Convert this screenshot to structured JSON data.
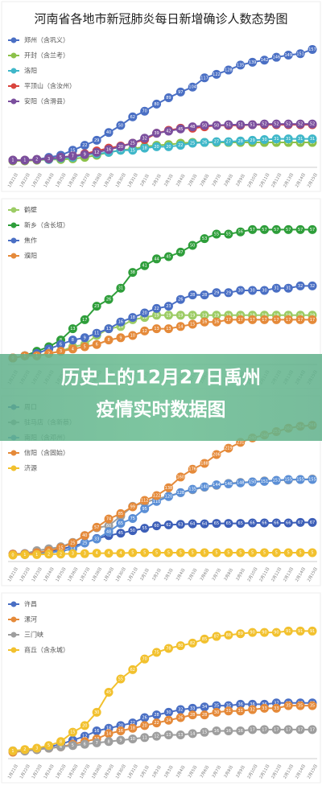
{
  "banner": [
    "历史上的12月27日禹州",
    "疫情实时数据图"
  ],
  "chart_data": [
    {
      "type": "line",
      "title": "河南省各地市新冠肺炎每日新增确诊人数态势图",
      "categories": [
        "1月21日",
        "1月22日",
        "1月23日",
        "1月24日",
        "1月25日",
        "1月26日",
        "1月27日",
        "1月28日",
        "1月29日",
        "1月30日",
        "1月31日",
        "2月1日",
        "2月2日",
        "2月3日",
        "2月4日",
        "2月5日",
        "2月6日",
        "2月7日",
        "2月8日",
        "2月9日",
        "2月10日",
        "2月11日",
        "2月12日",
        "2月13日",
        "2月14日",
        "2月15日"
      ],
      "ylim": [
        0,
        170
      ],
      "series": [
        {
          "name": "郑州（含巩义）",
          "color": "#4a6fc4",
          "values": [
            1,
            1,
            2,
            5,
            8,
            15,
            22,
            29,
            40,
            50,
            62,
            70,
            80,
            89,
            97,
            104,
            117,
            122,
            128,
            135,
            139,
            142,
            146,
            149,
            151,
            157
          ]
        },
        {
          "name": "开封（含兰考）",
          "color": "#8cc14a",
          "values": [
            0,
            0,
            1,
            2,
            2,
            3,
            5,
            8,
            12,
            15,
            17,
            20,
            22,
            23,
            25,
            26,
            26,
            26,
            26,
            26,
            26,
            26,
            26,
            26,
            26,
            26
          ]
        },
        {
          "name": "洛阳",
          "color": "#3fb7c9",
          "values": [
            1,
            1,
            2,
            2,
            4,
            5,
            9,
            10,
            12,
            15,
            15,
            18,
            20,
            20,
            22,
            25,
            26,
            27,
            27,
            28,
            29,
            30,
            31,
            31,
            31,
            31
          ]
        },
        {
          "name": "平顶山（含汝州）",
          "color": "#d9453e",
          "values": [
            1,
            1,
            2,
            3,
            5,
            7,
            10,
            14,
            18,
            21,
            25,
            30,
            39,
            43,
            46,
            46,
            48,
            50,
            50,
            50,
            51,
            51,
            51,
            51,
            51,
            51
          ]
        },
        {
          "name": "安阳（含滑县）",
          "color": "#7b4f9e",
          "values": [
            1,
            1,
            2,
            3,
            5,
            7,
            9,
            12,
            16,
            20,
            25,
            32,
            39,
            42,
            45,
            48,
            50,
            50,
            51,
            51,
            51,
            52,
            52,
            52,
            52,
            52
          ]
        }
      ]
    },
    {
      "type": "line",
      "categories": [
        "1月21日",
        "1月22日",
        "1月23日",
        "1月24日",
        "1月25日",
        "1月26日",
        "1月27日",
        "1月28日",
        "1月29日",
        "1月30日",
        "1月31日",
        "2月1日",
        "2月2日",
        "2月3日",
        "2月4日",
        "2月5日",
        "2月6日",
        "2月7日",
        "2月8日",
        "2月9日",
        "2月10日",
        "2月11日",
        "2月12日",
        "2月13日",
        "2月14日",
        "2月15日"
      ],
      "ylim": [
        0,
        65
      ],
      "series": [
        {
          "name": "鹤壁",
          "color": "#9ccc65",
          "values": [
            0,
            1,
            1,
            2,
            3,
            5,
            6,
            10,
            13,
            14,
            17,
            18,
            19,
            19,
            19,
            19,
            19,
            19,
            19,
            19,
            19,
            19,
            19,
            19,
            19,
            19
          ]
        },
        {
          "name": "新乡（含长垣）",
          "color": "#2e9e3a",
          "values": [
            0,
            1,
            3,
            5,
            8,
            13,
            17,
            23,
            26,
            31,
            38,
            41,
            44,
            45,
            47,
            50,
            53,
            55,
            55,
            56,
            57,
            57,
            57,
            57,
            57,
            57
          ]
        },
        {
          "name": "焦作",
          "color": "#4a6fc4",
          "values": [
            0,
            1,
            2,
            4,
            6,
            8,
            9,
            11,
            13,
            16,
            18,
            20,
            22,
            23,
            26,
            28,
            28,
            29,
            29,
            30,
            30,
            30,
            31,
            31,
            32,
            32
          ]
        },
        {
          "name": "濮阳",
          "color": "#e58a3a",
          "values": [
            0,
            1,
            1,
            2,
            3,
            4,
            5,
            6,
            8,
            9,
            10,
            12,
            13,
            13,
            14,
            15,
            16,
            16,
            17,
            17,
            17,
            17,
            17,
            17,
            17,
            17
          ]
        }
      ]
    },
    {
      "type": "line",
      "categories": [
        "1月21日",
        "1月22日",
        "1月23日",
        "1月24日",
        "1月25日",
        "1月26日",
        "1月27日",
        "1月28日",
        "1月29日",
        "1月30日",
        "1月31日",
        "2月1日",
        "2月2日",
        "2月3日",
        "2月4日",
        "2月5日",
        "2月6日",
        "2月7日",
        "2月8日",
        "2月9日",
        "2月10日",
        "2月11日",
        "2月12日",
        "2月13日",
        "2月14日",
        "2月15日"
      ],
      "ylim": [
        0,
        300
      ],
      "series": [
        {
          "name": "周口",
          "color": "#3d5fb8",
          "values": [
            2,
            3,
            5,
            8,
            12,
            18,
            25,
            34,
            40,
            45,
            50,
            55,
            60,
            62,
            63,
            64,
            64,
            65,
            65,
            65,
            66,
            66,
            66,
            66,
            67,
            67
          ]
        },
        {
          "name": "驻马店（含新蔡）",
          "color": "#9e9e9e",
          "values": [
            1,
            3,
            9,
            13,
            17,
            26,
            40,
            56,
            60,
            80,
            100,
            108,
            115,
            121,
            128,
            134,
            139,
            143,
            147,
            149,
            150,
            152,
            153,
            154,
            155,
            156
          ]
        },
        {
          "name": "南阳（含邓州）",
          "color": "#5b8fd6",
          "values": [
            1,
            1,
            3,
            5,
            8,
            13,
            25,
            33,
            48,
            65,
            75,
            95,
            110,
            120,
            128,
            135,
            140,
            144,
            146,
            148,
            150,
            151,
            153,
            155,
            155,
            155
          ]
        },
        {
          "name": "信阳（含固始）",
          "color": "#e58a3a",
          "values": [
            2,
            2,
            5,
            9,
            15,
            25,
            40,
            57,
            74,
            85,
            99,
            112,
            122,
            138,
            160,
            176,
            188,
            206,
            219,
            231,
            240,
            246,
            253,
            260,
            264,
            266
          ]
        },
        {
          "name": "济源",
          "color": "#f2c12e",
          "values": [
            0,
            1,
            1,
            2,
            2,
            3,
            3,
            4,
            4,
            4,
            5,
            5,
            5,
            5,
            5,
            5,
            5,
            5,
            5,
            5,
            5,
            5,
            5,
            5,
            5,
            5
          ]
        }
      ]
    },
    {
      "type": "line",
      "categories": [
        "1月21日",
        "1月22日",
        "1月23日",
        "1月24日",
        "1月25日",
        "1月26日",
        "1月27日",
        "1月28日",
        "1月29日",
        "1月30日",
        "1月31日",
        "2月1日",
        "2月2日",
        "2月3日",
        "2月4日",
        "2月5日",
        "2月6日",
        "2月7日",
        "2月8日",
        "2月9日",
        "2月10日",
        "2月11日",
        "2月12日",
        "2月13日",
        "2月14日",
        "2月15日"
      ],
      "ylim": [
        0,
        110
      ],
      "series": [
        {
          "name": "许昌",
          "color": "#4a6fc4",
          "values": [
            1,
            1,
            2,
            4,
            6,
            9,
            12,
            16,
            18,
            20,
            22,
            26,
            28,
            30,
            32,
            33,
            34,
            35,
            35,
            36,
            36,
            36,
            37,
            37,
            37,
            37
          ]
        },
        {
          "name": "漯河",
          "color": "#e58a3a",
          "values": [
            0,
            1,
            2,
            3,
            4,
            6,
            8,
            10,
            14,
            16,
            18,
            20,
            22,
            24,
            26,
            28,
            28,
            30,
            31,
            31,
            32,
            33,
            33,
            35,
            35,
            35
          ]
        },
        {
          "name": "三门峡",
          "color": "#9e9e9e",
          "values": [
            1,
            1,
            2,
            3,
            4,
            5,
            6,
            7,
            8,
            9,
            10,
            11,
            12,
            13,
            13,
            14,
            15,
            16,
            16,
            16,
            17,
            17,
            17,
            17,
            17,
            17
          ]
        },
        {
          "name": "商丘（含永城）",
          "color": "#f2c12e",
          "values": [
            1,
            2,
            3,
            5,
            8,
            15,
            20,
            30,
            45,
            55,
            62,
            70,
            75,
            78,
            80,
            82,
            85,
            87,
            88,
            89,
            90,
            90,
            90,
            91,
            91,
            91
          ]
        }
      ]
    }
  ]
}
